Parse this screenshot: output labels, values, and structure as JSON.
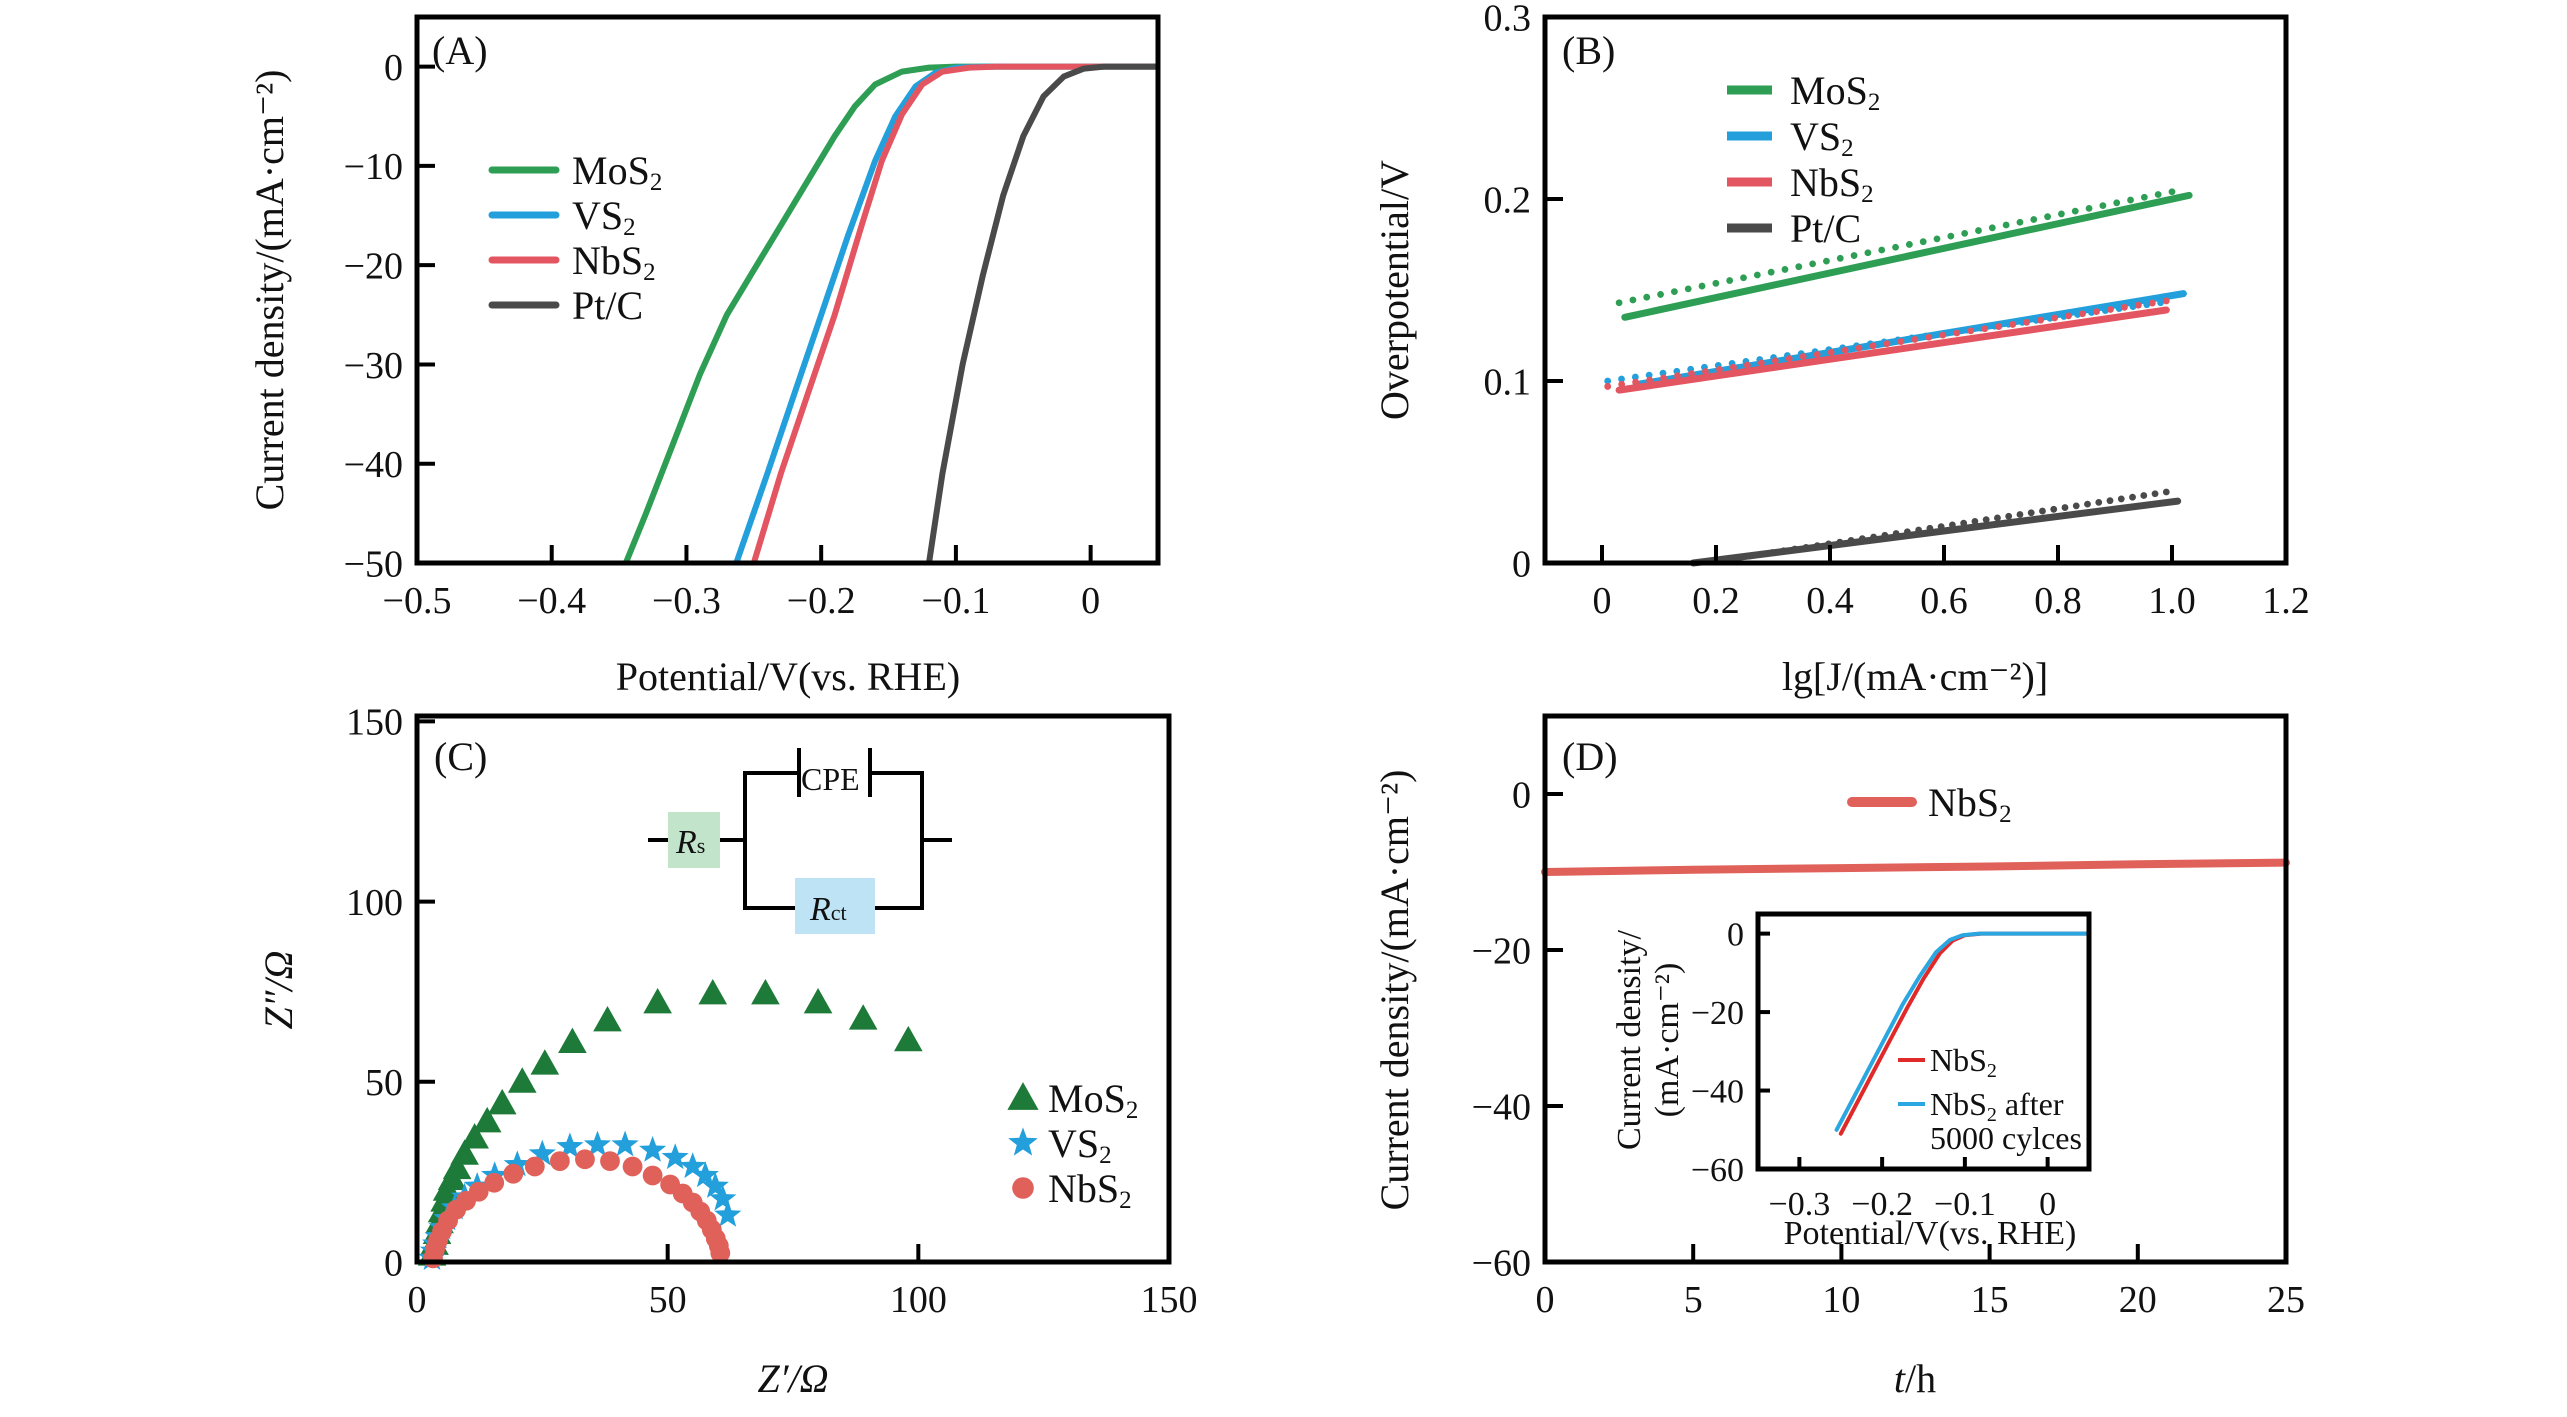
{
  "chart_data": [
    {
      "id": "A",
      "type": "line",
      "panel_label": "(A)",
      "xlabel": "Potential/V(vs. RHE)",
      "ylabel": "Current density/(mA·cm⁻²)",
      "xlim": [
        -0.5,
        0.05
      ],
      "ylim": [
        -50,
        5
      ],
      "xticks": [
        -0.5,
        -0.4,
        -0.3,
        -0.2,
        -0.1,
        0
      ],
      "xtick_labels": [
        "−0.5",
        "−0.4",
        "−0.3",
        "−0.2",
        "−0.1",
        "0"
      ],
      "yticks": [
        0,
        -10,
        -20,
        -30,
        -40,
        -50
      ],
      "ytick_labels": [
        "0",
        "−10",
        "−20",
        "−30",
        "−40",
        "−50"
      ],
      "legend_position": "upper-left",
      "series": [
        {
          "name": "MoS₂",
          "color": "#2e9e55",
          "x": [
            -0.345,
            -0.33,
            -0.31,
            -0.29,
            -0.27,
            -0.25,
            -0.23,
            -0.21,
            -0.19,
            -0.175,
            -0.16,
            -0.14,
            -0.12,
            -0.1,
            0.05
          ],
          "y": [
            -50,
            -45,
            -38,
            -31,
            -25,
            -20.5,
            -16,
            -11.5,
            -7,
            -4,
            -1.8,
            -0.5,
            -0.1,
            0,
            0
          ]
        },
        {
          "name": "VS₂",
          "color": "#23a0db",
          "x": [
            -0.263,
            -0.24,
            -0.22,
            -0.2,
            -0.18,
            -0.16,
            -0.145,
            -0.13,
            -0.115,
            -0.1,
            -0.08,
            0.05
          ],
          "y": [
            -50,
            -41,
            -33,
            -25,
            -17,
            -9.5,
            -5,
            -2,
            -0.6,
            -0.1,
            0,
            0
          ]
        },
        {
          "name": "NbS₂",
          "color": "#e35560",
          "x": [
            -0.25,
            -0.23,
            -0.21,
            -0.19,
            -0.17,
            -0.155,
            -0.14,
            -0.125,
            -0.11,
            -0.09,
            -0.07,
            0.05
          ],
          "y": [
            -50,
            -41,
            -33,
            -25,
            -16,
            -9.5,
            -4.8,
            -1.8,
            -0.5,
            -0.1,
            0,
            0
          ]
        },
        {
          "name": "Pt/C",
          "color": "#4a4a4a",
          "x": [
            -0.12,
            -0.11,
            -0.095,
            -0.08,
            -0.065,
            -0.05,
            -0.035,
            -0.02,
            -0.005,
            0.01,
            0.05
          ],
          "y": [
            -50,
            -41,
            -30,
            -21,
            -13,
            -7,
            -3,
            -1,
            -0.2,
            0,
            0
          ]
        }
      ]
    },
    {
      "id": "B",
      "type": "line",
      "panel_label": "(B)",
      "xlabel": "lg[J/(mA·cm⁻²)]",
      "ylabel": "Overpotential/V",
      "xlim": [
        -0.1,
        1.2
      ],
      "ylim": [
        0,
        0.3
      ],
      "xticks": [
        0,
        0.2,
        0.4,
        0.6,
        0.8,
        1.0,
        1.2
      ],
      "xtick_labels": [
        "0",
        "0.2",
        "0.4",
        "0.6",
        "0.8",
        "1.0",
        "1.2"
      ],
      "yticks": [
        0,
        0.1,
        0.2,
        0.3
      ],
      "ytick_labels": [
        "0",
        "0.1",
        "0.2",
        "0.3"
      ],
      "legend_position": "upper-left",
      "series": [
        {
          "name": "MoS₂",
          "color": "#2e9e55",
          "fit_x": [
            0.04,
            1.03
          ],
          "fit_y": [
            0.135,
            0.202
          ],
          "data_x": [
            0.03,
            1.0
          ],
          "data_y": [
            0.143,
            0.204
          ]
        },
        {
          "name": "VS₂",
          "color": "#23a0db",
          "fit_x": [
            0.06,
            1.02
          ],
          "fit_y": [
            0.098,
            0.148
          ],
          "data_x": [
            0.01,
            0.98
          ],
          "data_y": [
            0.1,
            0.143
          ]
        },
        {
          "name": "NbS₂",
          "color": "#e35560",
          "fit_x": [
            0.03,
            0.99
          ],
          "fit_y": [
            0.095,
            0.139
          ],
          "data_x": [
            0.01,
            0.99
          ],
          "data_y": [
            0.097,
            0.144
          ]
        },
        {
          "name": "Pt/C",
          "color": "#4a4a4a",
          "fit_x": [
            0.16,
            1.01
          ],
          "fit_y": [
            0.0,
            0.034
          ],
          "data_x": [
            0.2,
            0.99
          ],
          "data_y": [
            0.001,
            0.039
          ]
        }
      ]
    },
    {
      "id": "C",
      "type": "scatter",
      "panel_label": "(C)",
      "xlabel": "Z′/Ω",
      "ylabel": "Z″/Ω",
      "xlim": [
        0,
        150
      ],
      "ylim": [
        0,
        150
      ],
      "xticks": [
        0,
        50,
        100,
        150
      ],
      "xtick_labels": [
        "0",
        "50",
        "100",
        "150"
      ],
      "yticks": [
        0,
        50,
        100,
        150
      ],
      "ytick_labels": [
        "0",
        "50",
        "100",
        "150"
      ],
      "legend_position": "lower-right",
      "circuit": {
        "rs": "R",
        "rs_sub": "s",
        "cpe": "CPE",
        "rct": "R",
        "rct_sub": "ct",
        "rs_color": "#c2e4cb",
        "rct_color": "#bde3f4"
      },
      "series": [
        {
          "name": "MoS₂",
          "marker": "triangle",
          "color": "#1e7a38",
          "x": [
            3,
            3.5,
            4,
            4.5,
            5,
            5.5,
            6,
            7,
            8,
            9.5,
            11.5,
            14,
            17,
            21,
            25.5,
            31,
            38,
            48,
            59,
            69.5,
            80,
            89,
            98
          ],
          "y": [
            2,
            5,
            8,
            11,
            14,
            17,
            20,
            23,
            26,
            30,
            34.5,
            39,
            44,
            50,
            55,
            61,
            67,
            72,
            74.5,
            74.5,
            72,
            67.5,
            61.5
          ]
        },
        {
          "name": "VS₂",
          "marker": "star",
          "color": "#23a0db",
          "x": [
            3,
            3.3,
            3.7,
            4.2,
            5,
            6,
            7.5,
            9.5,
            12,
            15.5,
            20,
            25,
            30.5,
            36,
            41.5,
            47,
            51.5,
            55,
            57.5,
            59.5,
            61,
            62
          ],
          "y": [
            1,
            3,
            5,
            7,
            9.5,
            12,
            15,
            18,
            21,
            24,
            27,
            30,
            32,
            32.5,
            32.5,
            31,
            29,
            26.5,
            24,
            21,
            17.5,
            13
          ]
        },
        {
          "name": "NbS₂",
          "marker": "circle",
          "color": "#e0615a",
          "x": [
            3.2,
            3.6,
            4.2,
            5,
            6.2,
            7.8,
            9.8,
            12.3,
            15.4,
            19.2,
            23.5,
            28.5,
            33.5,
            38.5,
            43,
            47,
            50.5,
            53,
            55,
            56.5,
            57.8,
            58.8,
            59.6,
            60.2,
            60.5
          ],
          "y": [
            1,
            3.5,
            6,
            8.5,
            11.5,
            14.5,
            17,
            19.5,
            22,
            24.5,
            26.5,
            28,
            28.5,
            28,
            26.5,
            24,
            21.5,
            19,
            16.5,
            14,
            11.5,
            9,
            6.5,
            4.5,
            2.5
          ]
        }
      ]
    },
    {
      "id": "D",
      "type": "line",
      "panel_label": "(D)",
      "xlabel": "t/h",
      "ylabel": "Current density/(mA·cm⁻²)",
      "xlim": [
        0,
        25
      ],
      "ylim": [
        -60,
        10
      ],
      "xticks": [
        0,
        5,
        10,
        15,
        20,
        25
      ],
      "xtick_labels": [
        "0",
        "5",
        "10",
        "15",
        "20",
        "25"
      ],
      "yticks": [
        0,
        -20,
        -40,
        -60
      ],
      "ytick_labels": [
        "0",
        "−20",
        "−40",
        "−60"
      ],
      "legend_position": "top-center",
      "series": [
        {
          "name": "NbS₂",
          "color": "#e0615a",
          "x": [
            0,
            5,
            10,
            15,
            20,
            25
          ],
          "y": [
            -10.0,
            -9.7,
            -9.5,
            -9.3,
            -9.0,
            -8.8
          ]
        }
      ],
      "inset": {
        "type": "line",
        "xlabel": "Potential/V(vs. RHE)",
        "ylabel_line1": "Current density/",
        "ylabel_line2": "(mA·cm⁻²)",
        "xlim": [
          -0.35,
          0.05
        ],
        "ylim": [
          -60,
          5
        ],
        "xticks": [
          -0.3,
          -0.2,
          -0.1,
          0
        ],
        "xtick_labels": [
          "−0.3",
          "−0.2",
          "−0.1",
          "0"
        ],
        "yticks": [
          0,
          -20,
          -40,
          -60
        ],
        "ytick_labels": [
          "0",
          "−20",
          "−40",
          "−60"
        ],
        "legend_position": "lower-right",
        "series": [
          {
            "name": "NbS₂",
            "color": "#e02a2a",
            "x": [
              -0.25,
              -0.23,
              -0.21,
              -0.19,
              -0.17,
              -0.15,
              -0.13,
              -0.115,
              -0.1,
              -0.08,
              0.05
            ],
            "y": [
              -51,
              -43,
              -35,
              -27,
              -19,
              -11.5,
              -5,
              -1.8,
              -0.4,
              0,
              0
            ]
          },
          {
            "name": "NbS₂ after 5000 cylces",
            "name_line1": "NbS₂ after",
            "name_line2": "5000 cylces",
            "color": "#2aa6e0",
            "x": [
              -0.255,
              -0.235,
              -0.215,
              -0.195,
              -0.175,
              -0.155,
              -0.135,
              -0.118,
              -0.103,
              -0.083,
              0.05
            ],
            "y": [
              -50,
              -42,
              -34,
              -26,
              -18,
              -11,
              -4.8,
              -1.6,
              -0.4,
              0,
              0
            ]
          }
        ]
      }
    }
  ]
}
